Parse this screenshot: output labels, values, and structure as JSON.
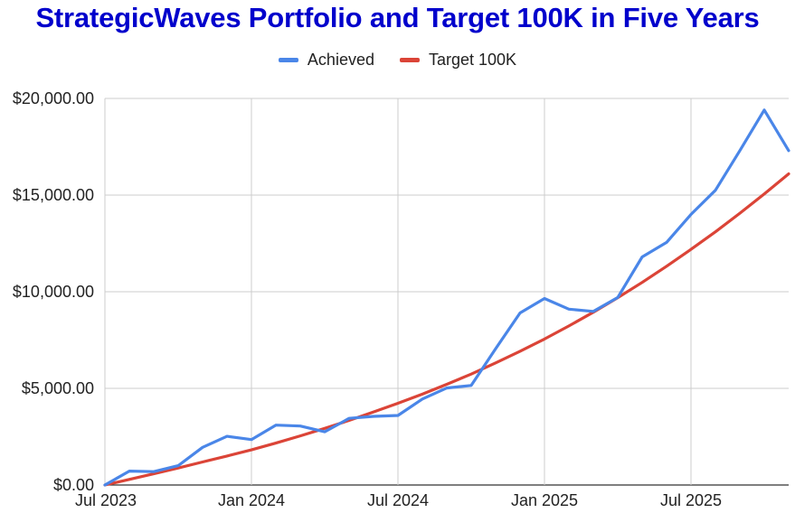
{
  "chart_data": {
    "type": "line",
    "title": "StrategicWaves Portfolio and Target 100K in Five Years",
    "xlabel": "",
    "ylabel": "",
    "ylim": [
      0,
      20000
    ],
    "y_ticks": [
      {
        "value": 0,
        "label": "$0.00"
      },
      {
        "value": 5000,
        "label": "$5,000.00"
      },
      {
        "value": 10000,
        "label": "$10,000.00"
      },
      {
        "value": 15000,
        "label": "$15,000.00"
      },
      {
        "value": 20000,
        "label": "$20,000.00"
      }
    ],
    "x_ticks": [
      {
        "value": "2023-07",
        "label": "Jul 2023"
      },
      {
        "value": "2024-01",
        "label": "Jan 2024"
      },
      {
        "value": "2024-07",
        "label": "Jul 2024"
      },
      {
        "value": "2025-01",
        "label": "Jan 2025"
      },
      {
        "value": "2025-07",
        "label": "Jul 2025"
      }
    ],
    "x": [
      "2023-07",
      "2023-08",
      "2023-09",
      "2023-10",
      "2023-11",
      "2023-12",
      "2024-01",
      "2024-02",
      "2024-03",
      "2024-04",
      "2024-05",
      "2024-06",
      "2024-07",
      "2024-08",
      "2024-09",
      "2024-10",
      "2024-11",
      "2024-12",
      "2025-01",
      "2025-02",
      "2025-03",
      "2025-04",
      "2025-05",
      "2025-06",
      "2025-07",
      "2025-08",
      "2025-09",
      "2025-10",
      "2025-11"
    ],
    "grid": true,
    "legend_position": "top",
    "series": [
      {
        "name": "Achieved",
        "color": "#4a86e8",
        "values": [
          0,
          720,
          690,
          1000,
          1950,
          2520,
          2350,
          3100,
          3050,
          2750,
          3450,
          3550,
          3600,
          4450,
          5020,
          5150,
          7050,
          8900,
          9650,
          9100,
          8980,
          9700,
          11800,
          12550,
          14000,
          15250,
          17300,
          19400,
          17300
        ]
      },
      {
        "name": "Target 100K",
        "color": "#db4437",
        "values": [
          0,
          290,
          580,
          880,
          1190,
          1500,
          1820,
          2170,
          2540,
          2930,
          3340,
          3780,
          4230,
          4700,
          5210,
          5740,
          6320,
          6920,
          7550,
          8230,
          8940,
          9690,
          10480,
          11320,
          12190,
          13100,
          14060,
          15060,
          16100
        ]
      }
    ]
  }
}
